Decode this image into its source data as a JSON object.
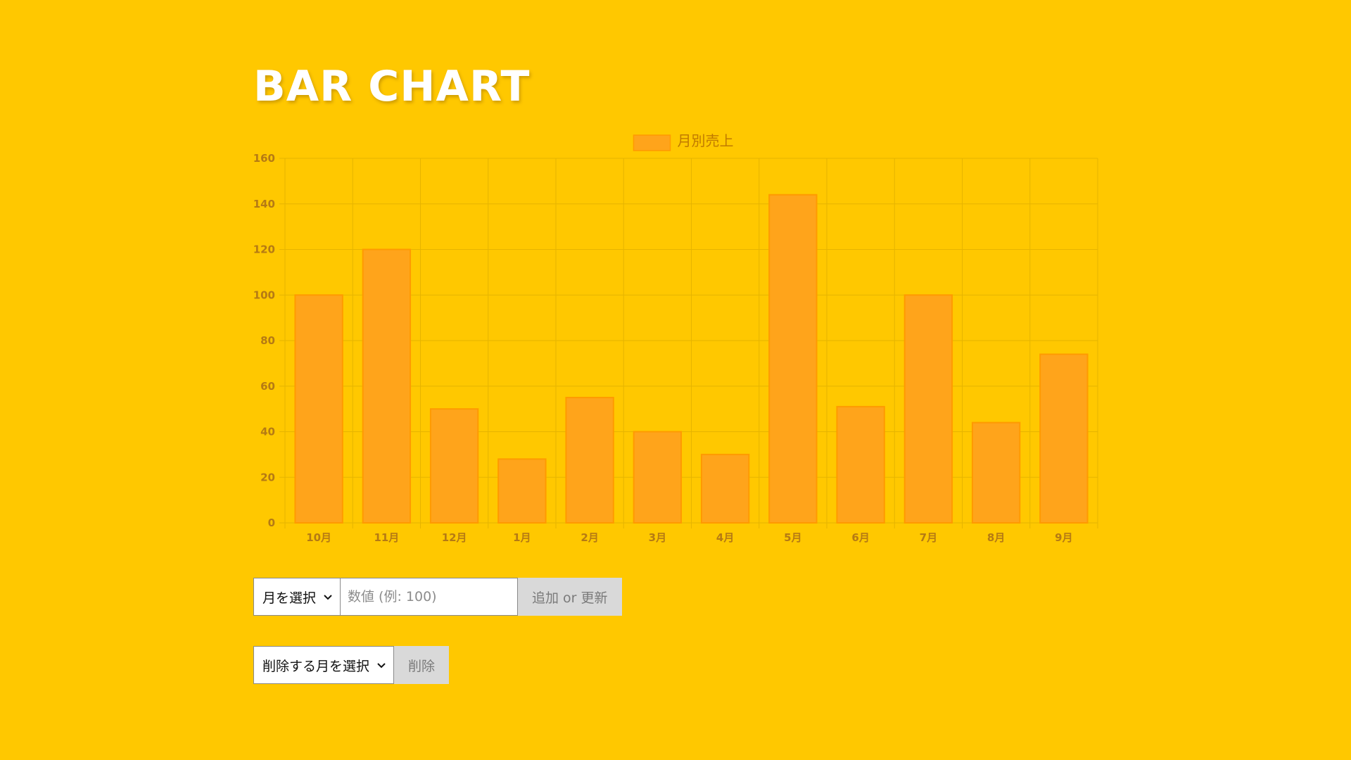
{
  "page": {
    "title": "BAR CHART"
  },
  "form_add": {
    "month_select_label": "月を選択",
    "value_placeholder": "数値 (例: 100)",
    "submit_label": "追加 or 更新"
  },
  "form_delete": {
    "month_select_label": "削除する月を選択",
    "submit_label": "削除"
  },
  "colors": {
    "background": "#ffc800",
    "bar_fill": "#ffa41b",
    "bar_stroke": "#ff9a00",
    "grid": "#e6b400",
    "tick_text": "#b57a14"
  },
  "chart_data": {
    "type": "bar",
    "title": "",
    "xlabel": "",
    "ylabel": "",
    "categories": [
      "10月",
      "11月",
      "12月",
      "1月",
      "2月",
      "3月",
      "4月",
      "5月",
      "6月",
      "7月",
      "8月",
      "9月"
    ],
    "series": [
      {
        "name": "月別売上",
        "values": [
          100,
          120,
          50,
          28,
          55,
          40,
          30,
          144,
          51,
          100,
          44,
          74
        ]
      }
    ],
    "ylim": [
      0,
      160
    ],
    "yticks": [
      0,
      20,
      40,
      60,
      80,
      100,
      120,
      140,
      160
    ],
    "grid": true,
    "legend": "top-center"
  }
}
